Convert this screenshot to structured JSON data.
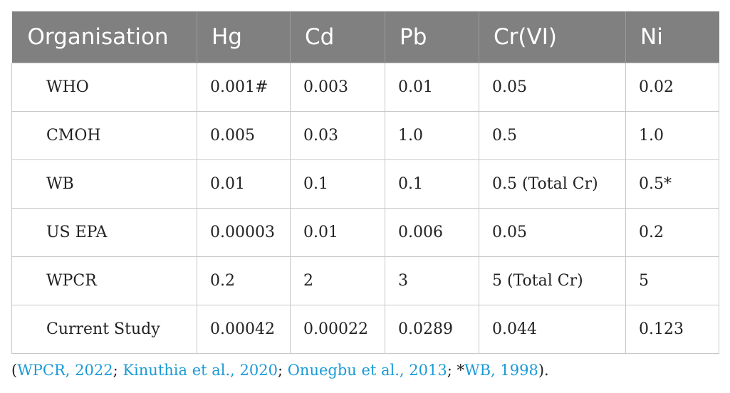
{
  "table": {
    "headers": [
      "Organisation",
      "Hg",
      "Cd",
      "Pb",
      "Cr(VI)",
      "Ni"
    ],
    "rows": [
      [
        "WHO",
        "0.001#",
        "0.003",
        "0.01",
        "0.05",
        "0.02"
      ],
      [
        "CMOH",
        "0.005",
        "0.03",
        "1.0",
        "0.5",
        "1.0"
      ],
      [
        "WB",
        "0.01",
        "0.1",
        "0.1",
        "0.5 (Total Cr)",
        "0.5*"
      ],
      [
        "US EPA",
        "0.00003",
        "0.01",
        "0.006",
        "0.05",
        "0.2"
      ],
      [
        "WPCR",
        "0.2",
        "2",
        "3",
        "5 (Total Cr)",
        "5"
      ],
      [
        "Current Study",
        "0.00042",
        "0.00022",
        "0.0289",
        "0.044",
        "0.123"
      ]
    ]
  },
  "footnote": {
    "open": "(",
    "ref1": "WPCR, 2022",
    "sep1": "; ",
    "ref2": "Kinuthia et al., 2020",
    "sep2": "; ",
    "ref3": "Onuegbu et al., 2013",
    "sep3": "; *",
    "ref4": "WB, 1998",
    "close": ")."
  },
  "colors": {
    "header_bg": "#808080",
    "header_text": "#ffffff",
    "link": "#1a9ad6",
    "grid": "#c8c8c8"
  }
}
